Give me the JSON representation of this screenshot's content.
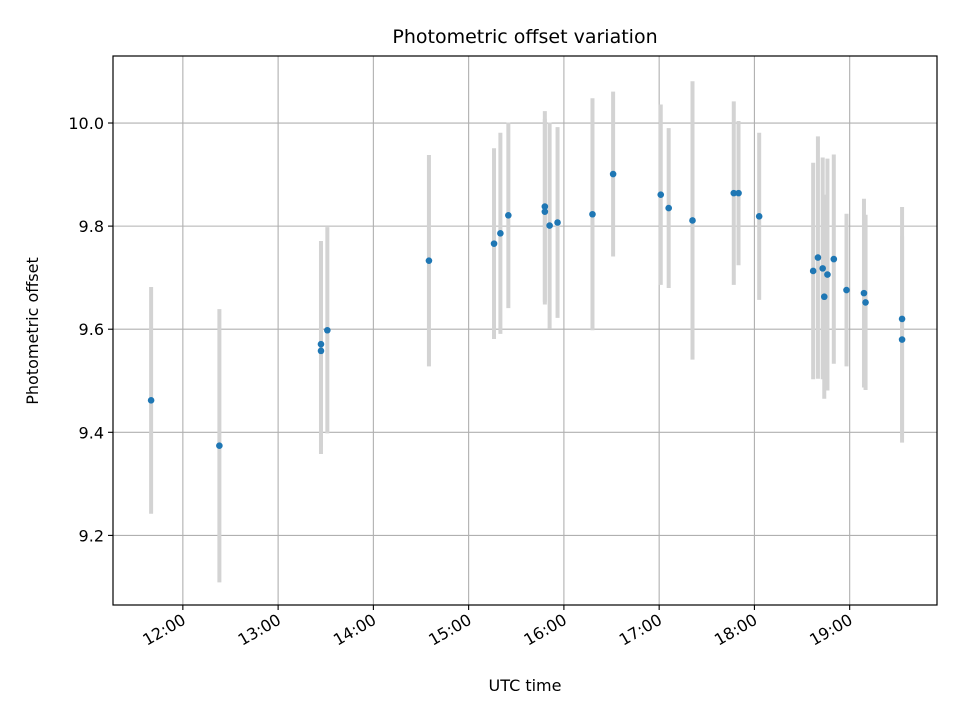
{
  "chart_data": {
    "type": "scatter",
    "title": "Photometric offset variation",
    "xlabel": "UTC time",
    "ylabel": "Photometric offset",
    "x_ticks": [
      "12:00",
      "13:00",
      "14:00",
      "15:00",
      "16:00",
      "17:00",
      "18:00",
      "19:00"
    ],
    "y_ticks": [
      "9.2",
      "9.4",
      "9.6",
      "9.8",
      "10.0"
    ],
    "xlim": [
      "11:16",
      "19:55"
    ],
    "ylim": [
      9.065,
      10.13
    ],
    "grid": true,
    "colors": {
      "point": "#1f77b4",
      "errorbar": "#d3d3d3",
      "grid": "#b0b0b0"
    },
    "points": [
      {
        "t": "11:40",
        "y": 9.462,
        "err": 0.22
      },
      {
        "t": "12:23",
        "y": 9.374,
        "err": 0.265
      },
      {
        "t": "13:27",
        "y": 9.571,
        "err": 0.2
      },
      {
        "t": "13:27",
        "y": 9.558,
        "err": 0.2
      },
      {
        "t": "13:31",
        "y": 9.598,
        "err": 0.2
      },
      {
        "t": "14:35",
        "y": 9.733,
        "err": 0.205
      },
      {
        "t": "15:16",
        "y": 9.766,
        "err": 0.185
      },
      {
        "t": "15:20",
        "y": 9.786,
        "err": 0.195
      },
      {
        "t": "15:25",
        "y": 9.821,
        "err": 0.18
      },
      {
        "t": "15:48",
        "y": 9.838,
        "err": 0.185
      },
      {
        "t": "15:48",
        "y": 9.828,
        "err": 0.18
      },
      {
        "t": "15:51",
        "y": 9.801,
        "err": 0.2
      },
      {
        "t": "15:56",
        "y": 9.807,
        "err": 0.185
      },
      {
        "t": "16:18",
        "y": 9.823,
        "err": 0.225
      },
      {
        "t": "16:31",
        "y": 9.901,
        "err": 0.16
      },
      {
        "t": "17:01",
        "y": 9.861,
        "err": 0.175
      },
      {
        "t": "17:06",
        "y": 9.835,
        "err": 0.155
      },
      {
        "t": "17:21",
        "y": 9.811,
        "err": 0.27
      },
      {
        "t": "17:47",
        "y": 9.864,
        "err": 0.178
      },
      {
        "t": "17:50",
        "y": 9.864,
        "err": 0.14
      },
      {
        "t": "18:03",
        "y": 9.819,
        "err": 0.162
      },
      {
        "t": "18:37",
        "y": 9.713,
        "err": 0.21
      },
      {
        "t": "18:40",
        "y": 9.739,
        "err": 0.235
      },
      {
        "t": "18:43",
        "y": 9.718,
        "err": 0.215
      },
      {
        "t": "18:44",
        "y": 9.663,
        "err": 0.198
      },
      {
        "t": "18:46",
        "y": 9.706,
        "err": 0.225
      },
      {
        "t": "18:50",
        "y": 9.736,
        "err": 0.203
      },
      {
        "t": "18:58",
        "y": 9.676,
        "err": 0.148
      },
      {
        "t": "19:09",
        "y": 9.67,
        "err": 0.183
      },
      {
        "t": "19:10",
        "y": 9.652,
        "err": 0.17
      },
      {
        "t": "19:33",
        "y": 9.62,
        "err": 0.217
      },
      {
        "t": "19:33",
        "y": 9.58,
        "err": 0.2
      }
    ]
  }
}
